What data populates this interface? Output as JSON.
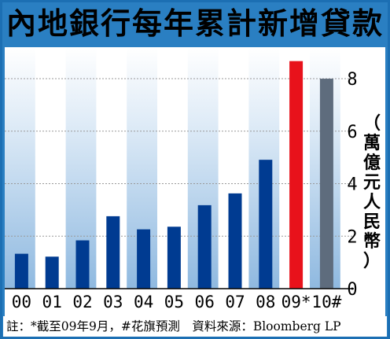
{
  "title": "內地銀行每年累計新增貸款",
  "footnote": "註：*截至09年9月，#花旗預測　資料來源：Bloomberg LP",
  "colors": {
    "frame": "#2a7fc2",
    "bar_default": "#003b91",
    "bar_highlight": "#e8121b",
    "bar_forecast": "#5e6c7d",
    "band_blue": "#bfd7ee"
  },
  "chart_data": {
    "type": "bar",
    "title": "內地銀行每年累計新增貸款",
    "ylabel": "（萬億元人民幣）",
    "xlabel": "",
    "categories": [
      "00",
      "01",
      "02",
      "03",
      "04",
      "05",
      "06",
      "07",
      "08",
      "09*",
      "10#"
    ],
    "values": [
      1.33,
      1.22,
      1.84,
      2.76,
      2.26,
      2.36,
      3.18,
      3.63,
      4.91,
      8.67,
      8.0
    ],
    "bar_colors": [
      "#003b91",
      "#003b91",
      "#003b91",
      "#003b91",
      "#003b91",
      "#003b91",
      "#003b91",
      "#003b91",
      "#003b91",
      "#e8121b",
      "#5e6c7d"
    ],
    "yticks": [
      0,
      2,
      4,
      6,
      8
    ],
    "ylim": [
      0,
      9.2
    ],
    "grid": true,
    "axis_side": "right"
  }
}
